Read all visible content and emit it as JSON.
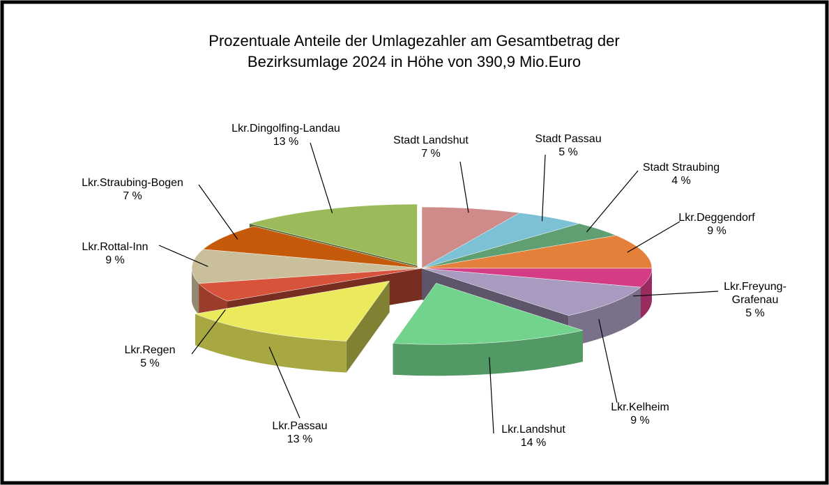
{
  "chart_data": {
    "type": "pie3d",
    "title": "Prozentuale Anteile der Umlagezahler am Gesamtbetrag der Bezirksumlage 2024 in Höhe von 390,9 Mio.Euro",
    "categories": [
      "Stadt Landshut",
      "Stadt Passau",
      "Stadt Straubing",
      "Lkr.Deggendorf",
      "Lkr.Freyung-Grafenau",
      "Lkr.Kelheim",
      "Lkr.Landshut",
      "Lkr.Passau",
      "Lkr.Regen",
      "Lkr.Rottal-Inn",
      "Lkr.Straubing-Bogen",
      "Lkr.Dingolfing-Landau"
    ],
    "values": [
      7,
      5,
      4,
      9,
      5,
      9,
      14,
      13,
      5,
      9,
      7,
      13
    ],
    "value_labels": [
      "7 %",
      "5 %",
      "4 %",
      "9 %",
      "5 %",
      "9 %",
      "14 %",
      "13 %",
      "5 %",
      "9 %",
      "7 %",
      "13 %"
    ],
    "colors": [
      "#cf8a8a",
      "#7cc1d6",
      "#5f9f72",
      "#e5803a",
      "#d43c86",
      "#a99bbf",
      "#72d48c",
      "#eaea5c",
      "#d8533c",
      "#c9bf9a",
      "#c45a0a",
      "#9bbb5a"
    ]
  }
}
